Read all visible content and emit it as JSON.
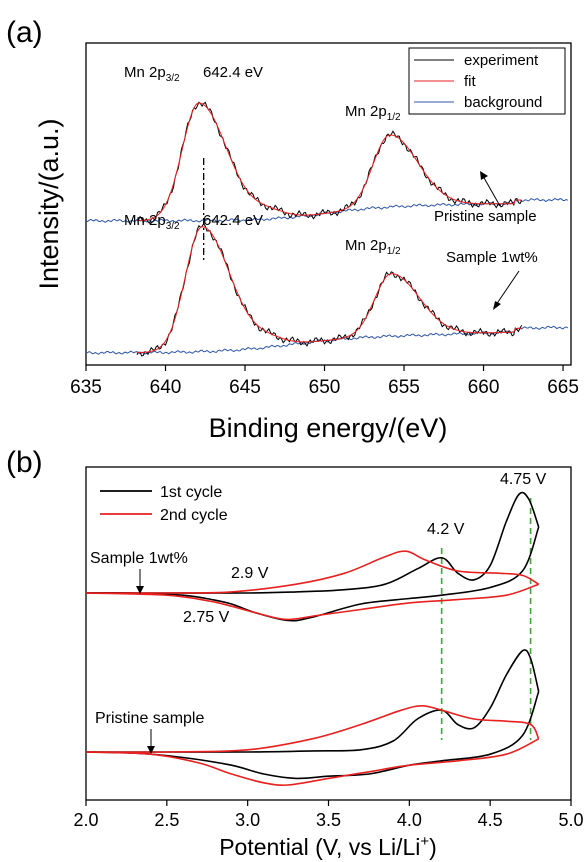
{
  "chart_data": [
    {
      "panel_label": "(a)",
      "type": "line",
      "xlabel": "Binding energy/(eV)",
      "ylabel": "Intensity/(a.u.)",
      "xlim": [
        635,
        665.5
      ],
      "x_ticks": [
        "635",
        "640",
        "645",
        "650",
        "655",
        "660",
        "665"
      ],
      "legend": {
        "placement": "top-right",
        "entries": [
          {
            "name": "experiment",
            "color": "#000000"
          },
          {
            "name": "fit",
            "color": "#e8201f"
          },
          {
            "name": "background",
            "color": "#2e56a6"
          }
        ]
      },
      "peak_line_x": 642.4,
      "annotations": {
        "mn_main": "Mn 2p",
        "sub_32": "3/2",
        "sub_12": "1/2",
        "energy": "642.4 eV",
        "pristine": "Pristine sample",
        "sample": "Sample 1wt%"
      },
      "series": [
        {
          "name": "Pristine sample",
          "offset": 0.54,
          "bg_start": -0.01,
          "bg_end": 0.07,
          "bg_mid": 650,
          "bg_width": 1.8,
          "bg_step": 0.055,
          "p1_center": 642.1,
          "p1_height": 0.49,
          "p2_center": 654.1,
          "p2_height": 0.3,
          "bg_mid2": 655,
          "bg_step2": 0.018,
          "x_start": 635
        },
        {
          "name": "Sample 1wt%",
          "offset": 0.0,
          "bg_start": -0.02,
          "bg_end": 0.1,
          "bg_mid": 648,
          "bg_width": 2.2,
          "bg_step": 0.07,
          "p1_center": 642.3,
          "p1_height": 0.52,
          "p2_center": 654.2,
          "p2_height": 0.26,
          "bg_mid2": 660,
          "bg_step2": 0.025,
          "x_start": 635
        }
      ]
    },
    {
      "panel_label": "(b)",
      "type": "line",
      "xlabel": "Potential (V, vs Li/Li",
      "xlabel_sup": "+",
      "xlabel_end": ")",
      "xlim": [
        2.0,
        5.0
      ],
      "x_ticks": [
        "2.0",
        "2.5",
        "3.0",
        "3.5",
        "4.0",
        "4.5",
        "5.0"
      ],
      "legend": {
        "placement": "top-left",
        "entries": [
          {
            "name": "1st cycle",
            "color": "#000000"
          },
          {
            "name": "2nd cycle",
            "color": "#e8201f"
          }
        ]
      },
      "reference_lines_x": [
        4.2,
        4.75
      ],
      "annotations": {
        "v475": "4.75 V",
        "v42": "4.2 V",
        "v29": "2.9 V",
        "v275": "2.75 V",
        "sample": "Sample 1wt%",
        "pristine": "Pristine sample"
      },
      "series": [
        {
          "name": "1st cycle",
          "group": "Sample 1wt%",
          "anodic": [
            [
              2.0,
              0.0
            ],
            [
              2.5,
              0.0
            ],
            [
              3.0,
              0.0
            ],
            [
              3.3,
              0.01
            ],
            [
              3.6,
              0.03
            ],
            [
              3.85,
              0.08
            ],
            [
              4.05,
              0.22
            ],
            [
              4.2,
              0.32
            ],
            [
              4.3,
              0.18
            ],
            [
              4.4,
              0.12
            ],
            [
              4.5,
              0.25
            ],
            [
              4.6,
              0.65
            ],
            [
              4.68,
              0.9
            ],
            [
              4.74,
              0.85
            ],
            [
              4.8,
              0.6
            ]
          ],
          "cathodic": [
            [
              4.8,
              0.6
            ],
            [
              4.7,
              0.2
            ],
            [
              4.5,
              0.05
            ],
            [
              4.2,
              -0.02
            ],
            [
              4.0,
              -0.05
            ],
            [
              3.7,
              -0.1
            ],
            [
              3.4,
              -0.22
            ],
            [
              3.25,
              -0.25
            ],
            [
              3.05,
              -0.18
            ],
            [
              2.9,
              -0.1
            ],
            [
              2.78,
              -0.06
            ],
            [
              2.6,
              -0.02
            ],
            [
              2.3,
              0.0
            ],
            [
              2.0,
              0.0
            ]
          ]
        },
        {
          "name": "2nd cycle",
          "group": "Sample 1wt%",
          "anodic": [
            [
              2.0,
              0.0
            ],
            [
              2.5,
              0.0
            ],
            [
              2.9,
              0.01
            ],
            [
              3.3,
              0.08
            ],
            [
              3.6,
              0.18
            ],
            [
              3.85,
              0.33
            ],
            [
              3.98,
              0.38
            ],
            [
              4.1,
              0.3
            ],
            [
              4.3,
              0.2
            ],
            [
              4.55,
              0.18
            ],
            [
              4.7,
              0.16
            ],
            [
              4.8,
              0.08
            ]
          ],
          "cathodic": [
            [
              4.8,
              0.08
            ],
            [
              4.6,
              -0.02
            ],
            [
              4.3,
              -0.06
            ],
            [
              4.0,
              -0.09
            ],
            [
              3.7,
              -0.15
            ],
            [
              3.45,
              -0.2
            ],
            [
              3.25,
              -0.24
            ],
            [
              3.1,
              -0.2
            ],
            [
              2.9,
              -0.12
            ],
            [
              2.75,
              -0.07
            ],
            [
              2.5,
              -0.02
            ],
            [
              2.0,
              0.0
            ]
          ]
        },
        {
          "name": "1st cycle",
          "group": "Pristine sample",
          "anodic": [
            [
              2.0,
              0.0
            ],
            [
              2.5,
              0.0
            ],
            [
              3.0,
              0.0
            ],
            [
              3.4,
              0.01
            ],
            [
              3.7,
              0.02
            ],
            [
              3.9,
              0.1
            ],
            [
              4.05,
              0.3
            ],
            [
              4.2,
              0.38
            ],
            [
              4.3,
              0.25
            ],
            [
              4.4,
              0.22
            ],
            [
              4.5,
              0.4
            ],
            [
              4.6,
              0.7
            ],
            [
              4.7,
              0.92
            ],
            [
              4.75,
              0.85
            ],
            [
              4.8,
              0.55
            ]
          ],
          "cathodic": [
            [
              4.8,
              0.55
            ],
            [
              4.7,
              0.15
            ],
            [
              4.5,
              -0.02
            ],
            [
              4.2,
              -0.08
            ],
            [
              4.0,
              -0.12
            ],
            [
              3.75,
              -0.2
            ],
            [
              3.5,
              -0.22
            ],
            [
              3.3,
              -0.24
            ],
            [
              3.1,
              -0.2
            ],
            [
              2.9,
              -0.12
            ],
            [
              2.6,
              -0.05
            ],
            [
              2.3,
              -0.01
            ],
            [
              2.0,
              0.0
            ]
          ]
        },
        {
          "name": "2nd cycle",
          "group": "Pristine sample",
          "anodic": [
            [
              2.0,
              0.0
            ],
            [
              2.5,
              0.0
            ],
            [
              3.0,
              0.02
            ],
            [
              3.4,
              0.12
            ],
            [
              3.7,
              0.25
            ],
            [
              3.95,
              0.38
            ],
            [
              4.08,
              0.42
            ],
            [
              4.2,
              0.38
            ],
            [
              4.4,
              0.3
            ],
            [
              4.6,
              0.28
            ],
            [
              4.75,
              0.25
            ],
            [
              4.8,
              0.12
            ]
          ],
          "cathodic": [
            [
              4.8,
              0.12
            ],
            [
              4.6,
              -0.02
            ],
            [
              4.3,
              -0.08
            ],
            [
              4.0,
              -0.12
            ],
            [
              3.75,
              -0.18
            ],
            [
              3.5,
              -0.24
            ],
            [
              3.25,
              -0.3
            ],
            [
              3.1,
              -0.28
            ],
            [
              2.9,
              -0.2
            ],
            [
              2.7,
              -0.1
            ],
            [
              2.4,
              -0.02
            ],
            [
              2.0,
              0.0
            ]
          ]
        }
      ]
    }
  ]
}
